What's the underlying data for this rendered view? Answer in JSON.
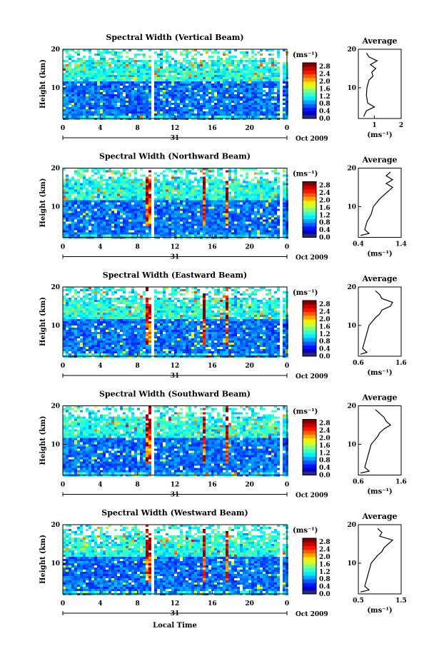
{
  "figure": {
    "xlabel": "Local Time",
    "date_label": "Oct 2009",
    "day_label": "31",
    "unit_label": "(ms⁻¹)",
    "avg_title": "Average"
  },
  "chart_data": [
    {
      "type": "heatmap",
      "title": "Spectral Width (Vertical Beam)",
      "xlabel": "",
      "ylabel": "Height (km)",
      "xlim": [
        0,
        24
      ],
      "ylim": [
        2,
        20
      ],
      "x_ticks": [
        "0",
        "4",
        "8",
        "12",
        "16",
        "20",
        "0"
      ],
      "y_ticks": [
        "10",
        "20"
      ],
      "colorbar": {
        "label": "(ms⁻¹)",
        "range": [
          0,
          3.0
        ],
        "ticks": [
          "0.0",
          "0.4",
          "0.8",
          "1.2",
          "1.6",
          "2.0",
          "2.4",
          "2.8"
        ]
      },
      "data_gaps_local_time": [
        9.6,
        23.2
      ],
      "average_profile": {
        "title": "Average",
        "xlabel": "(ms⁻¹)",
        "x_ticks": [
          "1",
          "2"
        ],
        "xlim": [
          0.4,
          2.0
        ],
        "ylim": [
          2,
          20
        ],
        "y_ticks": [
          "10",
          "20"
        ],
        "height_km": [
          2.5,
          4,
          5,
          6,
          8,
          10,
          12,
          13,
          14,
          15,
          16,
          17,
          18,
          19
        ],
        "width_ms": [
          0.6,
          0.7,
          1.0,
          0.75,
          0.7,
          0.72,
          0.8,
          0.95,
          0.9,
          1.05,
          0.85,
          1.1,
          0.8,
          0.7
        ]
      }
    },
    {
      "type": "heatmap",
      "title": "Spectral Width (Northward Beam)",
      "xlabel": "",
      "ylabel": "Height (km)",
      "xlim": [
        0,
        24
      ],
      "ylim": [
        2,
        20
      ],
      "x_ticks": [
        "0",
        "4",
        "8",
        "12",
        "16",
        "20",
        "0"
      ],
      "y_ticks": [
        "10",
        "20"
      ],
      "colorbar": {
        "label": "(ms⁻¹)",
        "range": [
          0,
          3.0
        ],
        "ticks": [
          "0.0",
          "0.4",
          "0.8",
          "1.2",
          "1.6",
          "2.0",
          "2.4",
          "2.8"
        ]
      },
      "data_gaps_local_time": [
        9.6,
        23.2
      ],
      "average_profile": {
        "title": "Average",
        "xlabel": "(ms⁻¹)",
        "x_ticks": [
          "0.4",
          "1.4"
        ],
        "xlim": [
          0.4,
          1.4
        ],
        "ylim": [
          2,
          20
        ],
        "y_ticks": [
          "10",
          "20"
        ],
        "height_km": [
          2.5,
          3,
          4,
          6,
          8,
          10,
          12,
          13,
          14,
          15,
          16,
          17,
          18,
          19
        ],
        "width_ms": [
          0.45,
          0.65,
          0.55,
          0.6,
          0.7,
          0.75,
          0.9,
          1.0,
          1.1,
          1.2,
          1.05,
          1.2,
          1.05,
          1.15
        ]
      }
    },
    {
      "type": "heatmap",
      "title": "Spectral Width (Eastward Beam)",
      "xlabel": "",
      "ylabel": "Height (km)",
      "xlim": [
        0,
        24
      ],
      "ylim": [
        2,
        20
      ],
      "x_ticks": [
        "0",
        "4",
        "8",
        "12",
        "16",
        "20",
        "0"
      ],
      "y_ticks": [
        "10",
        "20"
      ],
      "colorbar": {
        "label": "(ms⁻¹)",
        "range": [
          0,
          3.0
        ],
        "ticks": [
          "0.0",
          "0.4",
          "0.8",
          "1.2",
          "1.6",
          "2.0",
          "2.4",
          "2.8"
        ]
      },
      "data_gaps_local_time": [
        9.6,
        23.2
      ],
      "average_profile": {
        "title": "Average",
        "xlabel": "(ms⁻¹)",
        "x_ticks": [
          "0.6",
          "1.6"
        ],
        "xlim": [
          0.6,
          1.6
        ],
        "ylim": [
          2,
          20
        ],
        "y_ticks": [
          "10",
          "20"
        ],
        "height_km": [
          2.5,
          3,
          4,
          6,
          8,
          10,
          12,
          13,
          14,
          15,
          16,
          17,
          18,
          19
        ],
        "width_ms": [
          0.65,
          0.8,
          0.7,
          0.75,
          0.8,
          0.85,
          1.0,
          1.1,
          1.15,
          1.35,
          1.4,
          1.15,
          1.1,
          1.0
        ]
      }
    },
    {
      "type": "heatmap",
      "title": "Spectral Width (Southward Beam)",
      "xlabel": "",
      "ylabel": "Height (km)",
      "xlim": [
        0,
        24
      ],
      "ylim": [
        2,
        20
      ],
      "x_ticks": [
        "0",
        "4",
        "8",
        "12",
        "16",
        "20",
        "0"
      ],
      "y_ticks": [
        "10",
        "20"
      ],
      "colorbar": {
        "label": "(ms⁻¹)",
        "range": [
          0,
          3.0
        ],
        "ticks": [
          "0.0",
          "0.4",
          "0.8",
          "1.2",
          "1.6",
          "2.0",
          "2.4",
          "2.8"
        ]
      },
      "data_gaps_local_time": [
        9.6,
        23.2
      ],
      "average_profile": {
        "title": "Average",
        "xlabel": "(ms⁻¹)",
        "x_ticks": [
          "0.6",
          "1.6"
        ],
        "xlim": [
          0.6,
          1.6
        ],
        "ylim": [
          2,
          20
        ],
        "y_ticks": [
          "10",
          "20"
        ],
        "height_km": [
          2.5,
          3,
          4,
          6,
          8,
          10,
          12,
          13,
          14,
          15,
          16,
          17,
          18,
          19
        ],
        "width_ms": [
          0.65,
          0.85,
          0.75,
          0.8,
          0.85,
          0.9,
          1.05,
          1.1,
          1.2,
          1.35,
          1.25,
          1.2,
          1.1,
          1.0
        ]
      }
    },
    {
      "type": "heatmap",
      "title": "Spectral Width (Westward Beam)",
      "xlabel": "Local Time",
      "ylabel": "Height (km)",
      "xlim": [
        0,
        24
      ],
      "ylim": [
        2,
        20
      ],
      "x_ticks": [
        "0",
        "4",
        "8",
        "12",
        "16",
        "20",
        "0"
      ],
      "y_ticks": [
        "10",
        "20"
      ],
      "colorbar": {
        "label": "(ms⁻¹)",
        "range": [
          0,
          3.0
        ],
        "ticks": [
          "0.0",
          "0.4",
          "0.8",
          "1.2",
          "1.6",
          "2.0",
          "2.4",
          "2.8"
        ]
      },
      "data_gaps_local_time": [
        9.6,
        23.2
      ],
      "average_profile": {
        "title": "Average",
        "xlabel": "(ms⁻¹)",
        "x_ticks": [
          "0.5",
          "1.5"
        ],
        "xlim": [
          0.5,
          1.5
        ],
        "ylim": [
          2,
          20
        ],
        "y_ticks": [
          "10",
          "20"
        ],
        "height_km": [
          2.5,
          3,
          4,
          6,
          8,
          10,
          12,
          13,
          14,
          15,
          16,
          17,
          18,
          19
        ],
        "width_ms": [
          0.55,
          0.75,
          0.65,
          0.7,
          0.75,
          0.8,
          0.95,
          1.05,
          1.1,
          1.2,
          1.3,
          1.0,
          1.05,
          0.95
        ]
      }
    }
  ]
}
